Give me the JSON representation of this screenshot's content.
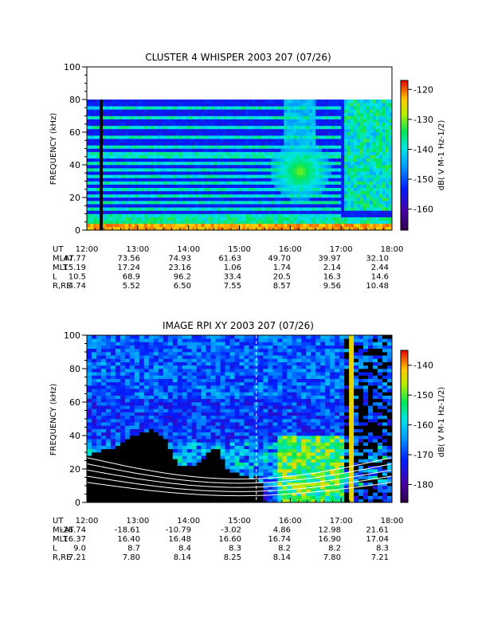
{
  "chart_data": [
    {
      "type": "heatmap",
      "title": "CLUSTER 4 WHISPER 2003 207 (07/26)",
      "ylabel": "FREQUENCY (kHz)",
      "ylim": [
        0,
        100
      ],
      "yticks": [
        "0",
        "20",
        "40",
        "60",
        "80",
        "100"
      ],
      "xlim": [
        "12:00",
        "18:00"
      ],
      "data_ceiling_khz": 80,
      "colorbar": {
        "label": "dB( V M-1 Hz-1/2)",
        "range": [
          -167,
          -117
        ],
        "ticks": [
          "-160",
          "-150",
          "-140",
          "-130",
          "-120"
        ]
      },
      "features": {
        "harmonic_bands_khz": [
          4,
          8,
          12,
          16,
          20,
          24,
          28,
          32,
          36,
          40,
          45,
          50,
          56,
          62,
          68,
          74
        ],
        "data_gap_time": "12:15",
        "emission_blob": {
          "time": "16:10",
          "freq_khz": 35
        },
        "low_freq_intense_band_khz": [
          0,
          4
        ]
      },
      "ephemeris": {
        "rows": [
          {
            "label": "UT",
            "values": [
              "12:00",
              "13:00",
              "14:00",
              "15:00",
              "16:00",
              "17:00",
              "18:00"
            ]
          },
          {
            "label": "MLAT",
            "values": [
              "47.77",
              "73.56",
              "74.93",
              "61.63",
              "49.70",
              "39.97",
              "32.10"
            ]
          },
          {
            "label": "MLT",
            "values": [
              "15.19",
              "17.24",
              "23.16",
              "1.06",
              "1.74",
              "2.14",
              "2.44"
            ]
          },
          {
            "label": "L",
            "values": [
              "10.5",
              "68.9",
              "96.2",
              "33.4",
              "20.5",
              "16.3",
              "14.6"
            ]
          },
          {
            "label": "R,RE",
            "values": [
              "4.74",
              "5.52",
              "6.50",
              "7.55",
              "8.57",
              "9.56",
              "10.48"
            ]
          }
        ]
      }
    },
    {
      "type": "heatmap",
      "title": "IMAGE RPI XY 2003 207 (07/26)",
      "ylabel": "FREQUENCY (kHz)",
      "ylim": [
        0,
        100
      ],
      "yticks": [
        "0",
        "20",
        "40",
        "60",
        "80",
        "100"
      ],
      "xlim": [
        "12:00",
        "18:00"
      ],
      "colorbar": {
        "label": "dB( V M-1 Hz-1/2)",
        "range": [
          -186,
          -135
        ],
        "ticks": [
          "-180",
          "-170",
          "-160",
          "-150",
          "-140"
        ]
      },
      "features": {
        "dark_region_boundary_khz": [
          {
            "t": "12:00",
            "f": 28
          },
          {
            "t": "12:30",
            "f": 32
          },
          {
            "t": "12:45",
            "f": 38
          },
          {
            "t": "13:15",
            "f": 43
          },
          {
            "t": "13:30",
            "f": 38
          },
          {
            "t": "13:45",
            "f": 22
          },
          {
            "t": "14:00",
            "f": 20
          },
          {
            "t": "14:30",
            "f": 32
          },
          {
            "t": "14:45",
            "f": 18
          },
          {
            "t": "15:00",
            "f": 16
          },
          {
            "t": "15:15",
            "f": 12
          },
          {
            "t": "15:20",
            "f": 18
          },
          {
            "t": "15:25",
            "f": 4
          }
        ],
        "dashed_marker_time": "15:20",
        "white_contour_lines": 5
      },
      "ephemeris": {
        "rows": [
          {
            "label": "UT",
            "values": [
              "12:00",
              "13:00",
              "14:00",
              "15:00",
              "16:00",
              "17:00",
              "18:00"
            ]
          },
          {
            "label": "MLAT",
            "values": [
              "-26.74",
              "-18.61",
              "-10.79",
              "-3.02",
              "4.86",
              "12.98",
              "21.61"
            ]
          },
          {
            "label": "MLT",
            "values": [
              "16.37",
              "16.40",
              "16.48",
              "16.60",
              "16.74",
              "16.90",
              "17.04"
            ]
          },
          {
            "label": "L",
            "values": [
              "9.0",
              "8.7",
              "8.4",
              "8.3",
              "8.2",
              "8.2",
              "8.3"
            ]
          },
          {
            "label": "R,RE",
            "values": [
              "7.21",
              "7.80",
              "8.14",
              "8.25",
              "8.14",
              "7.80",
              "7.21"
            ]
          }
        ]
      }
    }
  ]
}
